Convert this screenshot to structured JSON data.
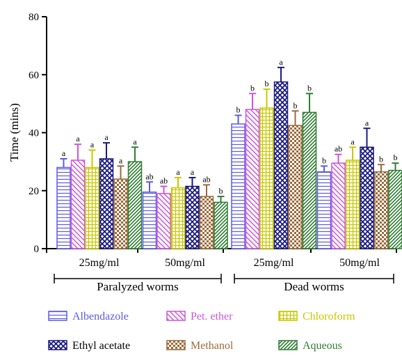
{
  "chart_data": {
    "type": "bar",
    "ylabel": "Time (mins)",
    "ylim": [
      0,
      80
    ],
    "yticks": [
      "0",
      "20",
      "40",
      "60",
      "80"
    ],
    "categories": [
      "25mg/ml",
      "50mg/ml",
      "25mg/ml",
      "50mg/ml"
    ],
    "groups": [
      {
        "label": "Paralyzed worms",
        "categories": [
          0,
          1
        ]
      },
      {
        "label": "Dead worms",
        "categories": [
          2,
          3
        ]
      }
    ],
    "legend": {
      "placement": "bottom"
    },
    "series": [
      {
        "name": "Albendazole",
        "color": "#5b5be8",
        "pattern": "horizontal-lines",
        "values": [
          28,
          19.5,
          43,
          26.5
        ],
        "errors": [
          3,
          3.5,
          3,
          2
        ],
        "labels": [
          "a",
          "ab",
          "b",
          "b"
        ]
      },
      {
        "name": "Pet. ether",
        "color": "#cc55dd",
        "pattern": "diagonal-lines",
        "values": [
          30.5,
          19,
          48,
          29.5
        ],
        "errors": [
          5.5,
          2.5,
          5.5,
          3
        ],
        "labels": [
          "a",
          "ab",
          "b",
          "ab"
        ]
      },
      {
        "name": "Chloroform",
        "color": "#c8c800",
        "pattern": "grid",
        "values": [
          28,
          21,
          48.5,
          30.5
        ],
        "errors": [
          6,
          3.5,
          6.5,
          4.5
        ],
        "labels": [
          "a",
          "a",
          "b",
          "a"
        ]
      },
      {
        "name": "Ethyl acetate",
        "color": "#1a1a80",
        "pattern": "crosshatch",
        "values": [
          31,
          21.5,
          57.5,
          35
        ],
        "errors": [
          5.5,
          3,
          5,
          6.5
        ],
        "labels": [
          "a",
          "a",
          "a",
          "a"
        ]
      },
      {
        "name": "Methanol",
        "color": "#9c6a3a",
        "pattern": "checker",
        "values": [
          24,
          18,
          42.5,
          26.5
        ],
        "errors": [
          4.5,
          4,
          5,
          2.5
        ],
        "labels": [
          "a",
          "ab",
          "b",
          "b"
        ]
      },
      {
        "name": "Aqueous",
        "color": "#2e7d32",
        "pattern": "diagonal-lines-dense",
        "values": [
          30,
          16,
          47,
          27
        ],
        "errors": [
          5,
          2,
          6.5,
          2.5
        ],
        "labels": [
          "a",
          "b",
          "b",
          "b"
        ]
      }
    ]
  }
}
